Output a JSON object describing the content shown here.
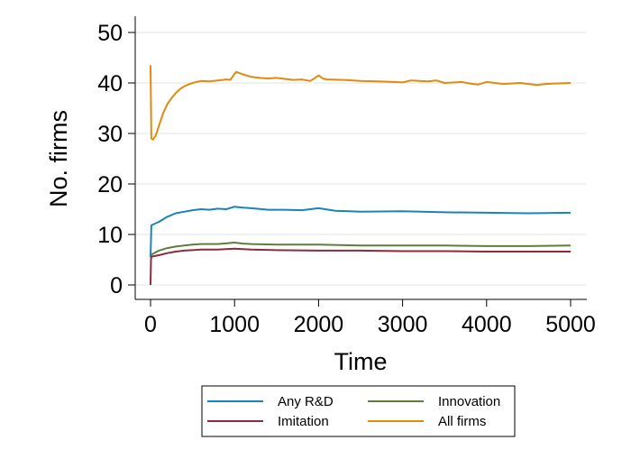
{
  "chart_data": {
    "type": "line",
    "title": "",
    "xlabel": "Time",
    "ylabel": "No. firms",
    "xlim": [
      0,
      5000
    ],
    "ylim": [
      0,
      50
    ],
    "xticks": [
      0,
      1000,
      2000,
      3000,
      4000,
      5000
    ],
    "yticks": [
      0,
      10,
      20,
      30,
      40,
      50
    ],
    "xtick_labels": [
      "0",
      "1000",
      "2000",
      "3000",
      "4000",
      "5000"
    ],
    "ytick_labels": [
      "0",
      "10",
      "20",
      "30",
      "40",
      "50"
    ],
    "grid": "horizontal",
    "legend_position": "bottom",
    "series": [
      {
        "name": "Any R&D",
        "color": "#1a83b8",
        "x": [
          0,
          10,
          100,
          200,
          300,
          400,
          500,
          600,
          700,
          800,
          900,
          1000,
          1100,
          1200,
          1400,
          1600,
          1800,
          2000,
          2200,
          2500,
          3000,
          3500,
          4000,
          4500,
          5000
        ],
        "y": [
          5.5,
          11.8,
          12.5,
          13.5,
          14.2,
          14.5,
          14.8,
          15.0,
          14.9,
          15.1,
          15.0,
          15.5,
          15.3,
          15.2,
          14.9,
          14.9,
          14.8,
          15.2,
          14.7,
          14.5,
          14.6,
          14.4,
          14.3,
          14.2,
          14.3
        ]
      },
      {
        "name": "Innovation",
        "color": "#5d7f3a",
        "x": [
          0,
          10,
          100,
          200,
          300,
          400,
          500,
          600,
          800,
          1000,
          1100,
          1200,
          1500,
          2000,
          2500,
          3000,
          3500,
          4000,
          4500,
          5000
        ],
        "y": [
          5.8,
          6.0,
          6.8,
          7.3,
          7.6,
          7.8,
          8.0,
          8.1,
          8.1,
          8.4,
          8.2,
          8.1,
          8.0,
          8.0,
          7.8,
          7.8,
          7.8,
          7.7,
          7.7,
          7.8
        ]
      },
      {
        "name": "Imitation",
        "color": "#8c2b3c",
        "x": [
          0,
          5,
          10,
          100,
          200,
          300,
          400,
          500,
          600,
          800,
          1000,
          1200,
          1500,
          2000,
          2500,
          3000,
          3500,
          4000,
          4500,
          5000
        ],
        "y": [
          0.0,
          5.0,
          5.6,
          5.9,
          6.3,
          6.6,
          6.8,
          6.9,
          7.0,
          7.0,
          7.2,
          7.0,
          6.9,
          6.8,
          6.8,
          6.7,
          6.7,
          6.6,
          6.6,
          6.6
        ]
      },
      {
        "name": "All firms",
        "color": "#e08a0e",
        "x": [
          0,
          10,
          30,
          60,
          100,
          150,
          200,
          250,
          300,
          350,
          400,
          450,
          500,
          550,
          600,
          700,
          800,
          900,
          950,
          1000,
          1020,
          1050,
          1100,
          1200,
          1300,
          1400,
          1500,
          1600,
          1700,
          1800,
          1900,
          1950,
          2000,
          2050,
          2100,
          2300,
          2500,
          2700,
          2900,
          3000,
          3100,
          3300,
          3400,
          3500,
          3700,
          3800,
          3900,
          4000,
          4200,
          4400,
          4600,
          4700,
          4800,
          5000
        ],
        "y": [
          43.5,
          29.0,
          28.8,
          29.5,
          31.5,
          34.0,
          35.8,
          37.0,
          38.0,
          38.8,
          39.3,
          39.7,
          40.0,
          40.2,
          40.4,
          40.3,
          40.5,
          40.7,
          40.6,
          41.8,
          42.2,
          42.0,
          41.7,
          41.2,
          41.0,
          40.9,
          41.0,
          40.8,
          40.6,
          40.7,
          40.4,
          40.9,
          41.5,
          40.9,
          40.7,
          40.6,
          40.4,
          40.3,
          40.2,
          40.1,
          40.5,
          40.3,
          40.5,
          40.0,
          40.2,
          39.9,
          39.7,
          40.2,
          39.8,
          40.0,
          39.6,
          39.8,
          39.9,
          40.0
        ]
      }
    ]
  }
}
